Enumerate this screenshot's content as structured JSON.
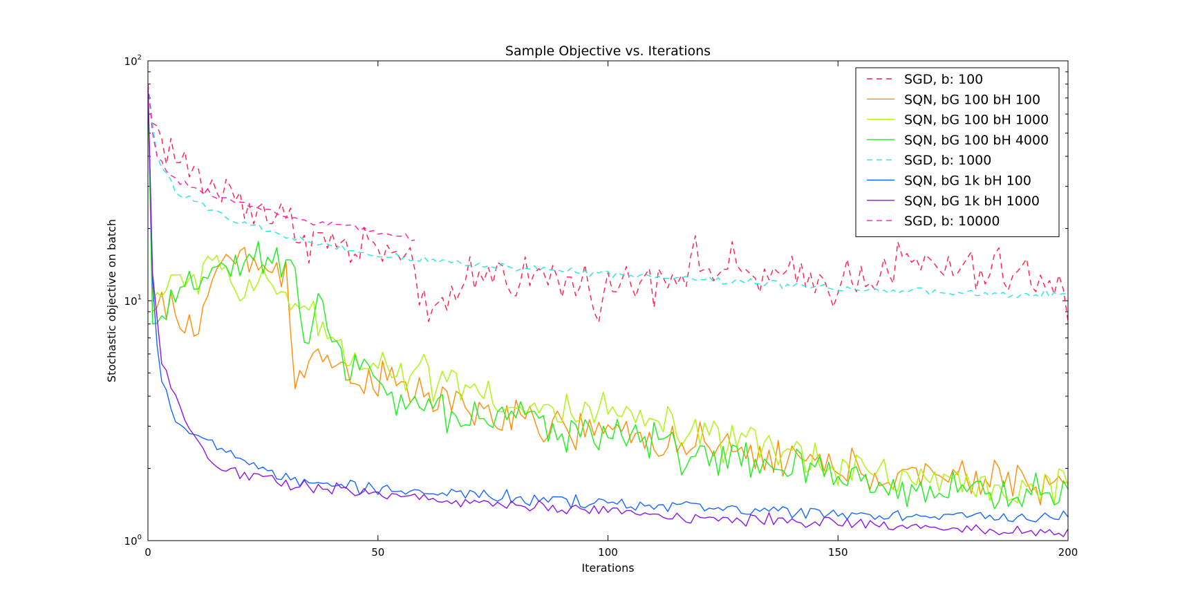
{
  "chart_data": {
    "type": "line",
    "title": "Sample Objective vs. Iterations",
    "xlabel": "Iterations",
    "ylabel": "Stochastic objective on batch",
    "xlim": [
      0,
      200
    ],
    "ylim": [
      1,
      100
    ],
    "yscale": "log",
    "x_ticks": [
      "0",
      "50",
      "100",
      "150",
      "200"
    ],
    "y_ticks": [
      {
        "base": "10",
        "exp": "0"
      },
      {
        "base": "10",
        "exp": "1"
      },
      {
        "base": "10",
        "exp": "2"
      }
    ],
    "grid": false,
    "legend_position": "top-right",
    "series": [
      {
        "name": "SGD, b: 100",
        "color": "#ff1a4a",
        "dash": true,
        "x_range": [
          0,
          200
        ],
        "noise": 0.12,
        "anchors": [
          [
            0,
            80
          ],
          [
            1,
            55
          ],
          [
            3,
            48
          ],
          [
            6,
            40
          ],
          [
            10,
            33
          ],
          [
            15,
            29
          ],
          [
            20,
            27
          ],
          [
            25,
            24
          ],
          [
            30,
            21
          ],
          [
            35,
            19
          ],
          [
            40,
            17
          ],
          [
            45,
            16
          ],
          [
            50,
            17
          ],
          [
            55,
            14
          ],
          [
            60,
            11
          ],
          [
            64,
            8
          ],
          [
            70,
            13
          ],
          [
            80,
            13
          ],
          [
            90,
            12
          ],
          [
            100,
            11
          ],
          [
            110,
            13
          ],
          [
            120,
            14
          ],
          [
            130,
            13
          ],
          [
            140,
            12
          ],
          [
            150,
            12
          ],
          [
            160,
            14
          ],
          [
            170,
            14
          ],
          [
            180,
            13
          ],
          [
            190,
            13
          ],
          [
            200,
            10
          ]
        ]
      },
      {
        "name": "SQN, bG 100 bH 100",
        "color": "#ff8c00",
        "dash": false,
        "x_range": [
          0,
          200
        ],
        "noise": 0.1,
        "anchors": [
          [
            0,
            80
          ],
          [
            1,
            9
          ],
          [
            4,
            9.5
          ],
          [
            8,
            7.5
          ],
          [
            12,
            9
          ],
          [
            15,
            14
          ],
          [
            20,
            15
          ],
          [
            25,
            14
          ],
          [
            30,
            13
          ],
          [
            32,
            5
          ],
          [
            35,
            6
          ],
          [
            40,
            5.5
          ],
          [
            45,
            5
          ],
          [
            50,
            4.6
          ],
          [
            55,
            4.3
          ],
          [
            60,
            4
          ],
          [
            70,
            3.6
          ],
          [
            80,
            3.1
          ],
          [
            90,
            2.9
          ],
          [
            100,
            2.8
          ],
          [
            110,
            2.7
          ],
          [
            120,
            2.4
          ],
          [
            130,
            2.3
          ],
          [
            140,
            2.2
          ],
          [
            150,
            2
          ],
          [
            160,
            1.9
          ],
          [
            170,
            1.8
          ],
          [
            180,
            1.8
          ],
          [
            190,
            1.8
          ],
          [
            200,
            1.7
          ]
        ]
      },
      {
        "name": "SQN, bG 100 bH 1000",
        "color": "#aaf500",
        "dash": false,
        "x_range": [
          0,
          200
        ],
        "noise": 0.1,
        "anchors": [
          [
            0,
            80
          ],
          [
            1,
            10
          ],
          [
            4,
            12
          ],
          [
            8,
            11
          ],
          [
            12,
            14
          ],
          [
            15,
            16
          ],
          [
            18,
            12
          ],
          [
            22,
            10
          ],
          [
            26,
            12
          ],
          [
            30,
            11
          ],
          [
            33,
            9
          ],
          [
            36,
            8
          ],
          [
            40,
            7
          ],
          [
            45,
            6
          ],
          [
            50,
            5.5
          ],
          [
            55,
            5
          ],
          [
            60,
            5
          ],
          [
            70,
            4.6
          ],
          [
            80,
            3.5
          ],
          [
            90,
            3.4
          ],
          [
            100,
            3.3
          ],
          [
            110,
            3.1
          ],
          [
            120,
            2.6
          ],
          [
            130,
            2.5
          ],
          [
            140,
            2.3
          ],
          [
            150,
            2.1
          ],
          [
            160,
            1.9
          ],
          [
            170,
            1.8
          ],
          [
            180,
            1.7
          ],
          [
            190,
            1.65
          ],
          [
            200,
            1.65
          ]
        ]
      },
      {
        "name": "SQN, bG 100 bH 4000",
        "color": "#19f019",
        "dash": false,
        "x_range": [
          0,
          200
        ],
        "noise": 0.1,
        "anchors": [
          [
            0,
            80
          ],
          [
            1,
            8
          ],
          [
            3,
            8
          ],
          [
            6,
            10
          ],
          [
            10,
            11
          ],
          [
            14,
            15
          ],
          [
            18,
            13
          ],
          [
            22,
            14
          ],
          [
            26,
            14
          ],
          [
            30,
            14
          ],
          [
            32,
            14
          ],
          [
            34,
            7
          ],
          [
            38,
            10
          ],
          [
            42,
            6
          ],
          [
            46,
            5
          ],
          [
            50,
            4.5
          ],
          [
            55,
            3.6
          ],
          [
            60,
            3.6
          ],
          [
            70,
            3.2
          ],
          [
            80,
            3.2
          ],
          [
            90,
            3
          ],
          [
            100,
            2.8
          ],
          [
            110,
            2.6
          ],
          [
            120,
            2.3
          ],
          [
            130,
            2.1
          ],
          [
            140,
            2
          ],
          [
            150,
            1.8
          ],
          [
            160,
            1.7
          ],
          [
            170,
            1.65
          ],
          [
            180,
            1.6
          ],
          [
            190,
            1.55
          ],
          [
            200,
            1.6
          ]
        ]
      },
      {
        "name": "SGD, b: 1000",
        "color": "#1ee6e6",
        "dash": true,
        "x_range": [
          0,
          200
        ],
        "noise": 0.02,
        "anchors": [
          [
            0,
            80
          ],
          [
            1,
            55
          ],
          [
            2,
            40
          ],
          [
            4,
            34
          ],
          [
            6,
            29
          ],
          [
            8,
            27
          ],
          [
            10,
            26
          ],
          [
            15,
            23
          ],
          [
            20,
            21
          ],
          [
            25,
            20
          ],
          [
            30,
            18.5
          ],
          [
            35,
            17.5
          ],
          [
            40,
            16.5
          ],
          [
            45,
            16
          ],
          [
            50,
            15.5
          ],
          [
            55,
            15
          ],
          [
            60,
            14.8
          ],
          [
            70,
            14.2
          ],
          [
            80,
            13.8
          ],
          [
            90,
            13.4
          ],
          [
            100,
            13
          ],
          [
            110,
            12.6
          ],
          [
            120,
            12.3
          ],
          [
            130,
            12
          ],
          [
            140,
            11.7
          ],
          [
            150,
            11.3
          ],
          [
            160,
            11
          ],
          [
            170,
            10.8
          ],
          [
            180,
            10.7
          ],
          [
            190,
            10.5
          ],
          [
            200,
            10.6
          ]
        ]
      },
      {
        "name": "SQN, bG 1k bH 100",
        "color": "#1466ff",
        "dash": false,
        "x_range": [
          0,
          200
        ],
        "noise": 0.03,
        "anchors": [
          [
            0,
            80
          ],
          [
            1,
            12
          ],
          [
            2,
            6.5
          ],
          [
            3,
            4.6
          ],
          [
            5,
            3.8
          ],
          [
            7,
            3
          ],
          [
            10,
            2.8
          ],
          [
            13,
            2.5
          ],
          [
            16,
            2.4
          ],
          [
            20,
            2.2
          ],
          [
            25,
            2
          ],
          [
            30,
            1.8
          ],
          [
            35,
            1.75
          ],
          [
            40,
            1.7
          ],
          [
            50,
            1.65
          ],
          [
            60,
            1.6
          ],
          [
            70,
            1.55
          ],
          [
            80,
            1.5
          ],
          [
            90,
            1.45
          ],
          [
            100,
            1.42
          ],
          [
            110,
            1.4
          ],
          [
            120,
            1.38
          ],
          [
            130,
            1.35
          ],
          [
            140,
            1.33
          ],
          [
            150,
            1.3
          ],
          [
            160,
            1.28
          ],
          [
            170,
            1.27
          ],
          [
            180,
            1.25
          ],
          [
            190,
            1.25
          ],
          [
            200,
            1.25
          ]
        ]
      },
      {
        "name": "SQN, bG 1k bH 1000",
        "color": "#8c14e6",
        "dash": false,
        "x_range": [
          0,
          200
        ],
        "noise": 0.03,
        "anchors": [
          [
            0,
            80
          ],
          [
            1,
            13
          ],
          [
            2,
            8
          ],
          [
            3,
            5.5
          ],
          [
            5,
            4.5
          ],
          [
            7,
            3.6
          ],
          [
            10,
            2.8
          ],
          [
            13,
            2.2
          ],
          [
            16,
            2
          ],
          [
            20,
            1.9
          ],
          [
            25,
            1.85
          ],
          [
            30,
            1.75
          ],
          [
            35,
            1.7
          ],
          [
            40,
            1.65
          ],
          [
            50,
            1.55
          ],
          [
            60,
            1.5
          ],
          [
            70,
            1.45
          ],
          [
            80,
            1.4
          ],
          [
            90,
            1.35
          ],
          [
            100,
            1.32
          ],
          [
            110,
            1.28
          ],
          [
            120,
            1.25
          ],
          [
            130,
            1.23
          ],
          [
            140,
            1.2
          ],
          [
            150,
            1.18
          ],
          [
            160,
            1.16
          ],
          [
            170,
            1.14
          ],
          [
            180,
            1.12
          ],
          [
            190,
            1.1
          ],
          [
            200,
            1.05
          ]
        ]
      },
      {
        "name": "SGD, b: 10000",
        "color": "#ff19b4",
        "dash": true,
        "x_range": [
          0,
          58
        ],
        "noise": 0.015,
        "anchors": [
          [
            0,
            80
          ],
          [
            1,
            50
          ],
          [
            2,
            40
          ],
          [
            4,
            35
          ],
          [
            6,
            32
          ],
          [
            10,
            30
          ],
          [
            15,
            27
          ],
          [
            20,
            25.5
          ],
          [
            25,
            24
          ],
          [
            30,
            22.5
          ],
          [
            35,
            21.5
          ],
          [
            40,
            21
          ],
          [
            45,
            20
          ],
          [
            50,
            19
          ],
          [
            55,
            18.5
          ],
          [
            58,
            18.5
          ]
        ]
      }
    ]
  }
}
